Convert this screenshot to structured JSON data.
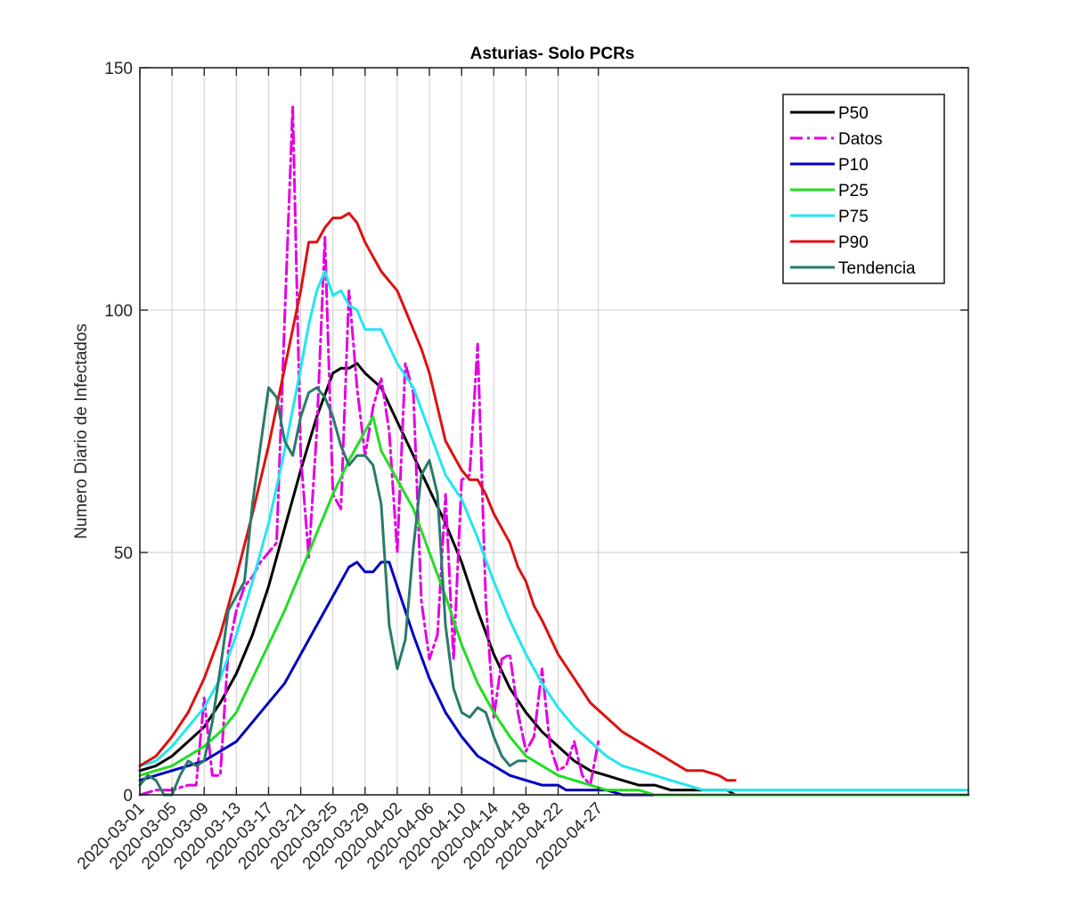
{
  "chart_data": {
    "type": "line",
    "title": "Asturias- Solo PCRs",
    "xlabel": "",
    "ylabel": "Numero Diario de Infectados",
    "ylim": [
      0,
      150
    ],
    "yticks": [
      0,
      50,
      100,
      150
    ],
    "x_days": [
      0,
      103
    ],
    "xticks": [
      {
        "day": 0,
        "label": "2020-03-01"
      },
      {
        "day": 4,
        "label": "2020-03-05"
      },
      {
        "day": 8,
        "label": "2020-03-09"
      },
      {
        "day": 12,
        "label": "2020-03-13"
      },
      {
        "day": 16,
        "label": "2020-03-17"
      },
      {
        "day": 20,
        "label": "2020-03-21"
      },
      {
        "day": 24,
        "label": "2020-03-25"
      },
      {
        "day": 28,
        "label": "2020-03-29"
      },
      {
        "day": 32,
        "label": "2020-04-02"
      },
      {
        "day": 36,
        "label": "2020-04-06"
      },
      {
        "day": 40,
        "label": "2020-04-10"
      },
      {
        "day": 44,
        "label": "2020-04-14"
      },
      {
        "day": 48,
        "label": "2020-04-18"
      },
      {
        "day": 52,
        "label": "2020-04-22"
      },
      {
        "day": 57,
        "label": "2020-04-27"
      }
    ],
    "grid": true,
    "legend_position": "top-right",
    "series": [
      {
        "name": "P50",
        "color": "#000000",
        "style": "solid",
        "points": [
          [
            0,
            5
          ],
          [
            2,
            6
          ],
          [
            4,
            8
          ],
          [
            6,
            11
          ],
          [
            8,
            14
          ],
          [
            10,
            19
          ],
          [
            12,
            25
          ],
          [
            14,
            33
          ],
          [
            16,
            43
          ],
          [
            18,
            55
          ],
          [
            20,
            67
          ],
          [
            22,
            78
          ],
          [
            24,
            87
          ],
          [
            25,
            88
          ],
          [
            26,
            88
          ],
          [
            27,
            89
          ],
          [
            28,
            87
          ],
          [
            30,
            84
          ],
          [
            32,
            77
          ],
          [
            34,
            70
          ],
          [
            36,
            63
          ],
          [
            38,
            56
          ],
          [
            40,
            48
          ],
          [
            42,
            38
          ],
          [
            44,
            29
          ],
          [
            46,
            22
          ],
          [
            48,
            17
          ],
          [
            50,
            13
          ],
          [
            52,
            10
          ],
          [
            54,
            7
          ],
          [
            56,
            5
          ],
          [
            58,
            4
          ],
          [
            60,
            3
          ],
          [
            62,
            2
          ],
          [
            64,
            2
          ],
          [
            66,
            1
          ],
          [
            70,
            1
          ],
          [
            73,
            1
          ],
          [
            74,
            0
          ],
          [
            103,
            0
          ]
        ]
      },
      {
        "name": "Datos",
        "color": "#e400e4",
        "style": "dashdot",
        "points": [
          [
            0,
            0
          ],
          [
            2,
            1
          ],
          [
            4,
            1
          ],
          [
            6,
            2
          ],
          [
            7,
            2
          ],
          [
            8,
            20
          ],
          [
            9,
            4
          ],
          [
            10,
            4
          ],
          [
            11,
            30
          ],
          [
            12,
            38
          ],
          [
            13,
            43
          ],
          [
            14,
            45
          ],
          [
            15,
            48
          ],
          [
            16,
            50
          ],
          [
            17,
            52
          ],
          [
            18,
            98
          ],
          [
            19,
            142
          ],
          [
            20,
            70
          ],
          [
            21,
            49
          ],
          [
            22,
            75
          ],
          [
            23,
            115
          ],
          [
            24,
            62
          ],
          [
            25,
            59
          ],
          [
            26,
            104
          ],
          [
            27,
            84
          ],
          [
            28,
            70
          ],
          [
            29,
            80
          ],
          [
            30,
            86
          ],
          [
            31,
            75
          ],
          [
            32,
            50
          ],
          [
            33,
            89
          ],
          [
            34,
            83
          ],
          [
            35,
            40
          ],
          [
            36,
            28
          ],
          [
            37,
            33
          ],
          [
            38,
            62
          ],
          [
            39,
            28
          ],
          [
            40,
            65
          ],
          [
            41,
            66
          ],
          [
            42,
            93
          ],
          [
            43,
            40
          ],
          [
            44,
            16
          ],
          [
            45,
            28
          ],
          [
            46,
            29
          ],
          [
            47,
            17
          ],
          [
            48,
            9
          ],
          [
            49,
            12
          ],
          [
            50,
            26
          ],
          [
            51,
            10
          ],
          [
            52,
            5
          ],
          [
            53,
            6
          ],
          [
            54,
            11
          ],
          [
            55,
            4
          ],
          [
            56,
            2
          ],
          [
            57,
            11
          ]
        ]
      },
      {
        "name": "P10",
        "color": "#0000c0",
        "style": "solid",
        "points": [
          [
            0,
            3
          ],
          [
            2,
            4
          ],
          [
            4,
            5
          ],
          [
            6,
            6
          ],
          [
            8,
            7
          ],
          [
            10,
            9
          ],
          [
            12,
            11
          ],
          [
            14,
            15
          ],
          [
            16,
            19
          ],
          [
            18,
            23
          ],
          [
            20,
            29
          ],
          [
            22,
            35
          ],
          [
            24,
            41
          ],
          [
            26,
            47
          ],
          [
            27,
            48
          ],
          [
            28,
            46
          ],
          [
            29,
            46
          ],
          [
            30,
            48
          ],
          [
            31,
            48
          ],
          [
            32,
            43
          ],
          [
            34,
            33
          ],
          [
            36,
            24
          ],
          [
            38,
            17
          ],
          [
            40,
            12
          ],
          [
            42,
            8
          ],
          [
            44,
            6
          ],
          [
            46,
            4
          ],
          [
            48,
            3
          ],
          [
            50,
            2
          ],
          [
            52,
            2
          ],
          [
            53,
            1
          ],
          [
            56,
            1
          ],
          [
            58,
            1
          ],
          [
            60,
            0
          ],
          [
            103,
            0
          ]
        ]
      },
      {
        "name": "P25",
        "color": "#22dd22",
        "style": "solid",
        "points": [
          [
            0,
            4
          ],
          [
            2,
            5
          ],
          [
            4,
            6
          ],
          [
            6,
            8
          ],
          [
            8,
            10
          ],
          [
            10,
            13
          ],
          [
            12,
            17
          ],
          [
            14,
            24
          ],
          [
            16,
            31
          ],
          [
            18,
            38
          ],
          [
            20,
            46
          ],
          [
            22,
            54
          ],
          [
            24,
            62
          ],
          [
            26,
            69
          ],
          [
            28,
            75
          ],
          [
            29,
            78
          ],
          [
            30,
            71
          ],
          [
            32,
            65
          ],
          [
            34,
            59
          ],
          [
            36,
            50
          ],
          [
            38,
            41
          ],
          [
            40,
            31
          ],
          [
            42,
            23
          ],
          [
            44,
            17
          ],
          [
            46,
            12
          ],
          [
            48,
            8
          ],
          [
            50,
            6
          ],
          [
            52,
            4
          ],
          [
            54,
            3
          ],
          [
            56,
            2
          ],
          [
            58,
            1
          ],
          [
            62,
            1
          ],
          [
            64,
            0
          ],
          [
            103,
            0
          ]
        ]
      },
      {
        "name": "P75",
        "color": "#22e6f0",
        "style": "solid",
        "points": [
          [
            0,
            6
          ],
          [
            2,
            7
          ],
          [
            4,
            10
          ],
          [
            6,
            14
          ],
          [
            8,
            18
          ],
          [
            10,
            24
          ],
          [
            12,
            33
          ],
          [
            14,
            44
          ],
          [
            16,
            56
          ],
          [
            18,
            71
          ],
          [
            20,
            88
          ],
          [
            21,
            97
          ],
          [
            22,
            104
          ],
          [
            23,
            108
          ],
          [
            24,
            103
          ],
          [
            25,
            104
          ],
          [
            26,
            101
          ],
          [
            27,
            100
          ],
          [
            28,
            96
          ],
          [
            30,
            96
          ],
          [
            32,
            89
          ],
          [
            34,
            84
          ],
          [
            36,
            75
          ],
          [
            38,
            66
          ],
          [
            40,
            61
          ],
          [
            42,
            53
          ],
          [
            44,
            44
          ],
          [
            46,
            36
          ],
          [
            48,
            29
          ],
          [
            50,
            23
          ],
          [
            52,
            18
          ],
          [
            54,
            14
          ],
          [
            56,
            11
          ],
          [
            58,
            8
          ],
          [
            60,
            6
          ],
          [
            62,
            5
          ],
          [
            64,
            4
          ],
          [
            66,
            3
          ],
          [
            68,
            2
          ],
          [
            70,
            1
          ],
          [
            103,
            1
          ]
        ]
      },
      {
        "name": "P90",
        "color": "#dd1111",
        "style": "solid",
        "points": [
          [
            0,
            6
          ],
          [
            2,
            8
          ],
          [
            4,
            12
          ],
          [
            6,
            17
          ],
          [
            8,
            24
          ],
          [
            10,
            33
          ],
          [
            12,
            45
          ],
          [
            14,
            58
          ],
          [
            16,
            72
          ],
          [
            18,
            88
          ],
          [
            20,
            104
          ],
          [
            21,
            114
          ],
          [
            22,
            114
          ],
          [
            23,
            117
          ],
          [
            24,
            119
          ],
          [
            25,
            119
          ],
          [
            26,
            120
          ],
          [
            27,
            118
          ],
          [
            28,
            114
          ],
          [
            29,
            111
          ],
          [
            30,
            108
          ],
          [
            31,
            106
          ],
          [
            32,
            104
          ],
          [
            33,
            100
          ],
          [
            34,
            96
          ],
          [
            35,
            92
          ],
          [
            36,
            87
          ],
          [
            37,
            80
          ],
          [
            38,
            73
          ],
          [
            39,
            70
          ],
          [
            40,
            67
          ],
          [
            41,
            65
          ],
          [
            42,
            65
          ],
          [
            43,
            62
          ],
          [
            44,
            58
          ],
          [
            45,
            55
          ],
          [
            46,
            52
          ],
          [
            47,
            47
          ],
          [
            48,
            44
          ],
          [
            49,
            39
          ],
          [
            50,
            36
          ],
          [
            52,
            29
          ],
          [
            54,
            24
          ],
          [
            56,
            19
          ],
          [
            58,
            16
          ],
          [
            60,
            13
          ],
          [
            62,
            11
          ],
          [
            64,
            9
          ],
          [
            66,
            7
          ],
          [
            68,
            5
          ],
          [
            70,
            5
          ],
          [
            72,
            4
          ],
          [
            73,
            3
          ],
          [
            74,
            3
          ]
        ]
      },
      {
        "name": "Tendencia",
        "color": "#2a7a6a",
        "style": "solid",
        "points": [
          [
            0,
            2
          ],
          [
            1,
            4
          ],
          [
            2,
            3
          ],
          [
            3,
            0
          ],
          [
            4,
            0
          ],
          [
            5,
            4
          ],
          [
            6,
            7
          ],
          [
            7,
            6
          ],
          [
            8,
            7
          ],
          [
            9,
            15
          ],
          [
            10,
            26
          ],
          [
            11,
            38
          ],
          [
            12,
            41
          ],
          [
            13,
            44
          ],
          [
            14,
            60
          ],
          [
            15,
            72
          ],
          [
            16,
            84
          ],
          [
            17,
            82
          ],
          [
            18,
            73
          ],
          [
            19,
            70
          ],
          [
            20,
            78
          ],
          [
            21,
            83
          ],
          [
            22,
            84
          ],
          [
            23,
            82
          ],
          [
            24,
            78
          ],
          [
            25,
            72
          ],
          [
            26,
            68
          ],
          [
            27,
            70
          ],
          [
            28,
            70
          ],
          [
            29,
            68
          ],
          [
            30,
            60
          ],
          [
            31,
            35
          ],
          [
            32,
            26
          ],
          [
            33,
            32
          ],
          [
            34,
            51
          ],
          [
            35,
            66
          ],
          [
            36,
            69
          ],
          [
            37,
            62
          ],
          [
            38,
            35
          ],
          [
            39,
            22
          ],
          [
            40,
            17
          ],
          [
            41,
            16
          ],
          [
            42,
            18
          ],
          [
            43,
            17
          ],
          [
            44,
            12
          ],
          [
            45,
            8
          ],
          [
            46,
            6
          ],
          [
            47,
            7
          ],
          [
            48,
            7
          ]
        ]
      }
    ]
  }
}
